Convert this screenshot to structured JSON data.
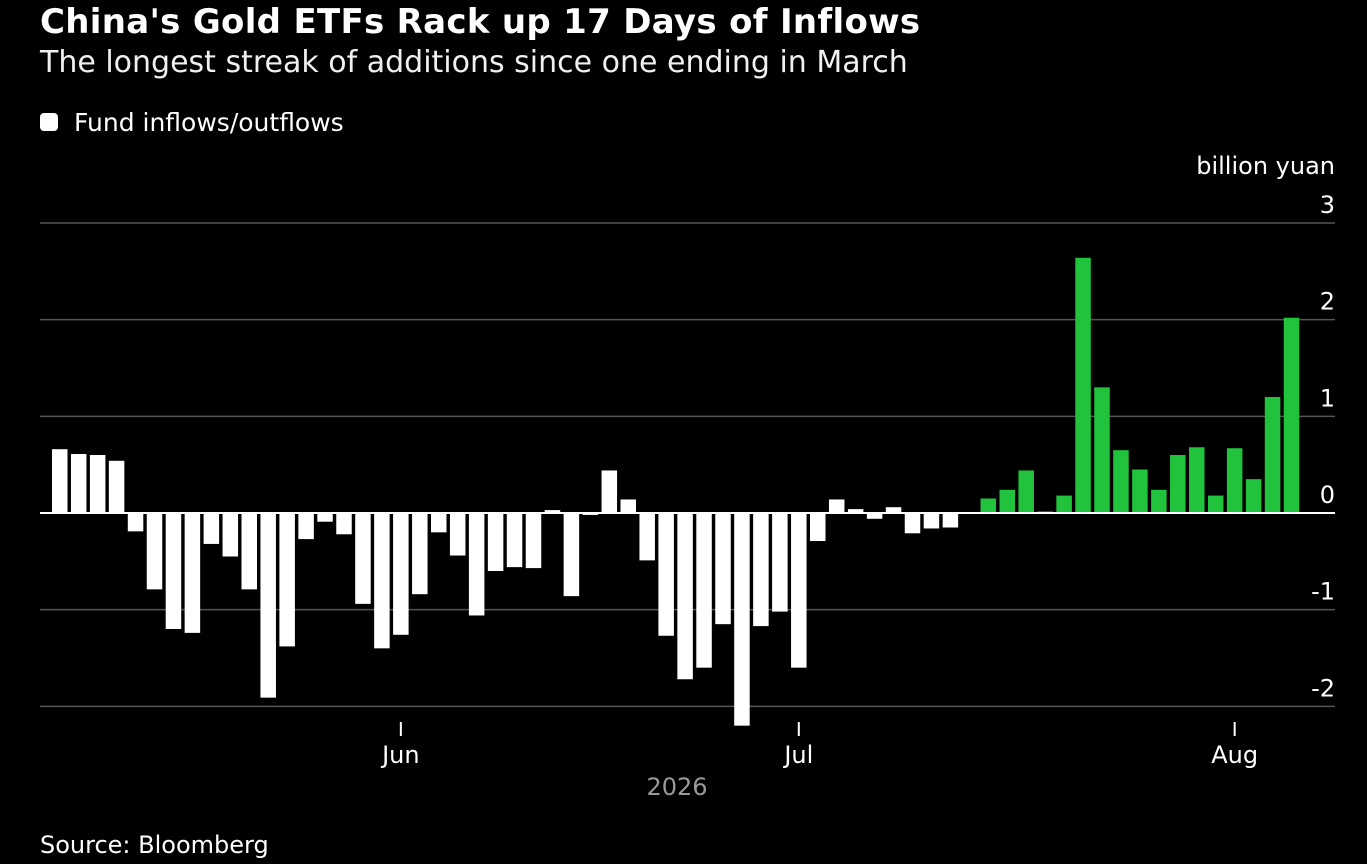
{
  "title": "China's Gold ETFs Rack up 17 Days of Inflows",
  "subtitle": "The longest streak of additions since one ending in March",
  "legend": {
    "label": "Fund inflows/outflows",
    "swatch_color": "#ffffff"
  },
  "source": "Source: Bloomberg",
  "chart_data": {
    "type": "bar",
    "ylabel": "billion yuan",
    "ylim": [
      -2.2,
      3
    ],
    "y_ticks": [
      3,
      2,
      1,
      0,
      -1,
      -2
    ],
    "y_tick_labels": [
      "3",
      "2",
      "1",
      "0",
      "-1",
      "-2"
    ],
    "x_tick_labels": [
      {
        "label": "Jun",
        "index": 18
      },
      {
        "label": "Jul",
        "index": 39
      },
      {
        "label": "Aug",
        "index": 62
      }
    ],
    "year_label": "2026",
    "grid": true,
    "colors": {
      "outflow_period": "#ffffff",
      "inflow_streak": "#22c33c",
      "grid": "#555555",
      "axis": "#ffffff"
    },
    "values": [
      0.66,
      0.61,
      0.6,
      0.54,
      -0.19,
      -0.79,
      -1.2,
      -1.24,
      -0.32,
      -0.45,
      -0.79,
      -1.91,
      -1.38,
      -0.27,
      -0.09,
      -0.22,
      -0.94,
      -1.4,
      -1.26,
      -0.84,
      -0.2,
      -0.44,
      -1.06,
      -0.6,
      -0.56,
      -0.57,
      0.03,
      -0.86,
      -0.02,
      0.44,
      0.14,
      -0.49,
      -1.27,
      -1.72,
      -1.6,
      -1.15,
      -2.2,
      -1.17,
      -1.02,
      -1.6,
      -0.29,
      0.14,
      0.04,
      -0.06,
      0.06,
      -0.21,
      -0.16,
      -0.15,
      null,
      0.15,
      0.24,
      0.44,
      0.0,
      0.18,
      2.64,
      1.3,
      0.65,
      0.45,
      0.24,
      0.6,
      0.68,
      0.18,
      0.67,
      0.35,
      1.2,
      2.02
    ],
    "streak_start_index": 49
  }
}
